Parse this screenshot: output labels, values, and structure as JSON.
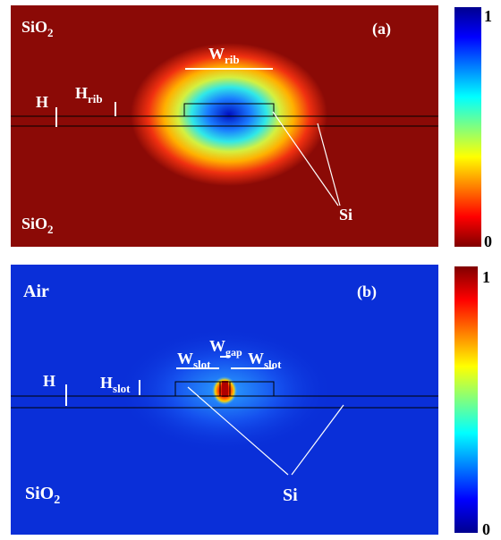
{
  "panel_a": {
    "tag": "(a)",
    "top_material": "SiO",
    "top_material_sub": "2",
    "bottom_material": "SiO",
    "bottom_material_sub": "2",
    "width_label": "W",
    "width_label_sub": "rib",
    "height_label": "H",
    "rib_height_label": "H",
    "rib_height_label_sub": "rib",
    "si_label": "Si",
    "colorbar_max": "1",
    "colorbar_min": "0"
  },
  "panel_b": {
    "tag": "(b)",
    "top_material": "Air",
    "bottom_material": "SiO",
    "bottom_material_sub": "2",
    "gap_label": "W",
    "gap_label_sub": "gap",
    "slot_left_label": "W",
    "slot_left_label_sub": "slot",
    "slot_right_label": "W",
    "slot_right_label_sub": "slot",
    "height_label": "H",
    "slot_height_label": "H",
    "slot_height_label_sub": "slot",
    "si_label": "Si",
    "colorbar_max": "1",
    "colorbar_min": "0"
  },
  "colors": {
    "jet_low": "#00008f",
    "jet_high": "#800000",
    "field_a_background": "#8b0a06",
    "field_b_background": "#0a2fd8"
  }
}
